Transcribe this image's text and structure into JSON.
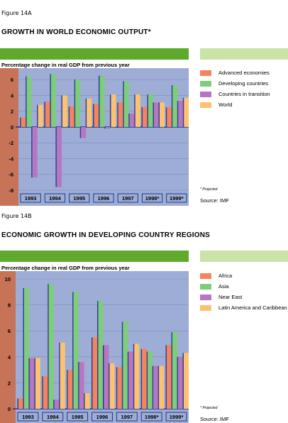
{
  "figures": [
    {
      "label": "Figure 14A",
      "title": "GROWTH IN WORLD ECONOMIC OUTPUT*",
      "subtitle": "Percentage change in real GDP from previous year",
      "note": "* Projected",
      "source": "Source: IMF"
    },
    {
      "label": "Figure 14B",
      "title": "ECONOMIC GROWTH IN DEVELOPING COUNTRY REGIONS",
      "subtitle": "Percentage change in real GDP from previous year",
      "note": "* Projected",
      "source": "Source: IMF"
    }
  ],
  "chart_data": [
    {
      "type": "bar",
      "title": "GROWTH IN WORLD ECONOMIC OUTPUT*",
      "ylabel": "Percentage change in real GDP from previous year",
      "ylim": [
        -8,
        7
      ],
      "yticks": [
        6,
        4,
        2,
        0,
        -2,
        -4,
        -6,
        -8
      ],
      "categories": [
        "1993",
        "1994",
        "1995",
        "1996",
        "1997",
        "1998*",
        "1999*"
      ],
      "series": [
        {
          "name": "Advanced economies",
          "color": "#f5835e",
          "values": [
            1.2,
            3.2,
            2.6,
            2.9,
            3.1,
            2.5,
            2.5
          ]
        },
        {
          "name": "Developing countries",
          "color": "#7dcd7a",
          "values": [
            6.4,
            6.7,
            6.0,
            6.5,
            5.8,
            4.1,
            5.3
          ]
        },
        {
          "name": "Countries in transition",
          "color": "#b776c3",
          "values": [
            -6.4,
            -7.6,
            -1.4,
            -0.2,
            1.7,
            3.1,
            3.3
          ]
        },
        {
          "name": "World",
          "color": "#fcc26f",
          "values": [
            2.8,
            4.0,
            3.6,
            4.1,
            4.1,
            3.1,
            3.7
          ]
        }
      ],
      "grid": true,
      "legend": "right"
    },
    {
      "type": "bar",
      "title": "ECONOMIC GROWTH IN DEVELOPING COUNTRY REGIONS",
      "ylabel": "Percentage change in real GDP from previous year",
      "ylim": [
        0,
        10
      ],
      "yticks": [
        10,
        8,
        6,
        4,
        2,
        0
      ],
      "categories": [
        "1993",
        "1994",
        "1995",
        "1996",
        "1997",
        "1998*",
        "1999*"
      ],
      "series": [
        {
          "name": "Africa",
          "color": "#f5835e",
          "values": [
            0.8,
            2.5,
            3.0,
            5.5,
            3.2,
            4.6,
            4.9
          ]
        },
        {
          "name": "Asia",
          "color": "#7dcd7a",
          "values": [
            9.3,
            9.6,
            9.0,
            8.3,
            6.7,
            4.4,
            5.9
          ]
        },
        {
          "name": "Near East",
          "color": "#b776c3",
          "values": [
            3.9,
            0.7,
            3.6,
            4.9,
            4.4,
            3.3,
            4.0
          ]
        },
        {
          "name": "Latin America and Caribbean",
          "color": "#fcc26f",
          "values": [
            3.9,
            5.1,
            1.2,
            3.5,
            5.0,
            3.3,
            4.3
          ]
        }
      ],
      "grid": true,
      "legend": "right"
    }
  ]
}
